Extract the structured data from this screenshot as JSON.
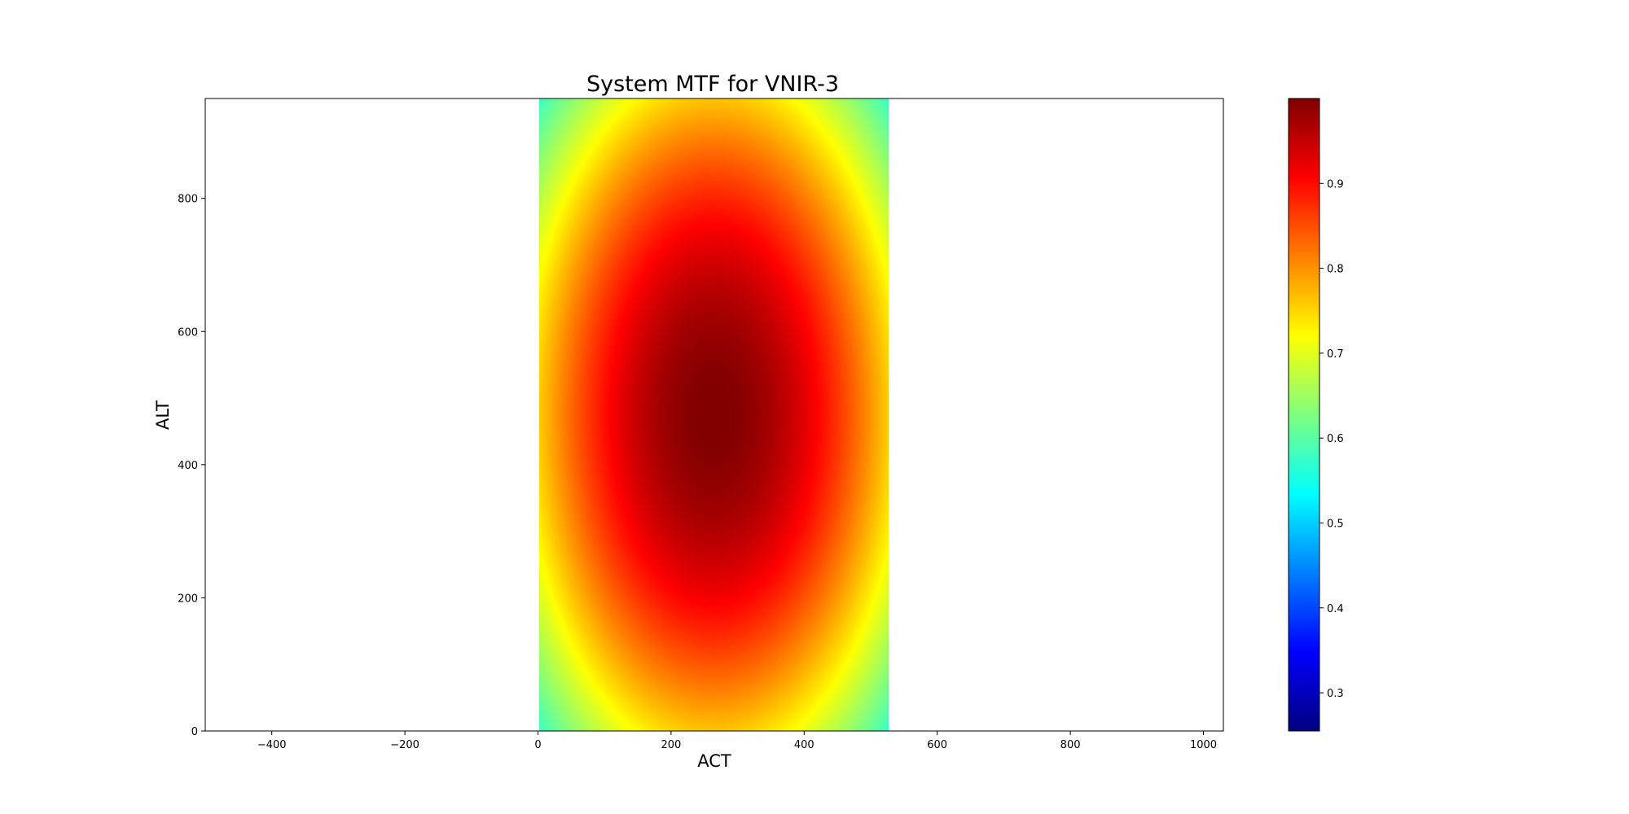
{
  "chart_data": {
    "type": "heatmap",
    "title": "System MTF for VNIR-3",
    "xlabel": "ACT",
    "ylabel": "ALT",
    "xlim": [
      -500,
      1030
    ],
    "ylim": [
      0,
      950
    ],
    "x_ticks": [
      -400,
      -200,
      0,
      200,
      400,
      600,
      800,
      1000
    ],
    "y_ticks": [
      0,
      200,
      400,
      600,
      800
    ],
    "x_tick_labels": [
      "−400",
      "−200",
      "0",
      "200",
      "400",
      "600",
      "800",
      "1000"
    ],
    "y_tick_labels": [
      "0",
      "200",
      "400",
      "600",
      "800"
    ],
    "image_extent": {
      "x": [
        0,
        525
      ],
      "y": [
        0,
        950
      ]
    },
    "peak": {
      "x": 262,
      "y": 475,
      "value": 1.0
    },
    "falloff_per_unit_sq": {
      "x": 4.05e-06,
      "y": 1.2e-06
    },
    "colormap": "jet",
    "colorbar": {
      "vmin": 0.255,
      "vmax": 1.0,
      "ticks": [
        0.3,
        0.4,
        0.5,
        0.6,
        0.7,
        0.8,
        0.9
      ],
      "tick_labels": [
        "0.3",
        "0.4",
        "0.5",
        "0.6",
        "0.7",
        "0.8",
        "0.9"
      ]
    },
    "grid": false
  }
}
